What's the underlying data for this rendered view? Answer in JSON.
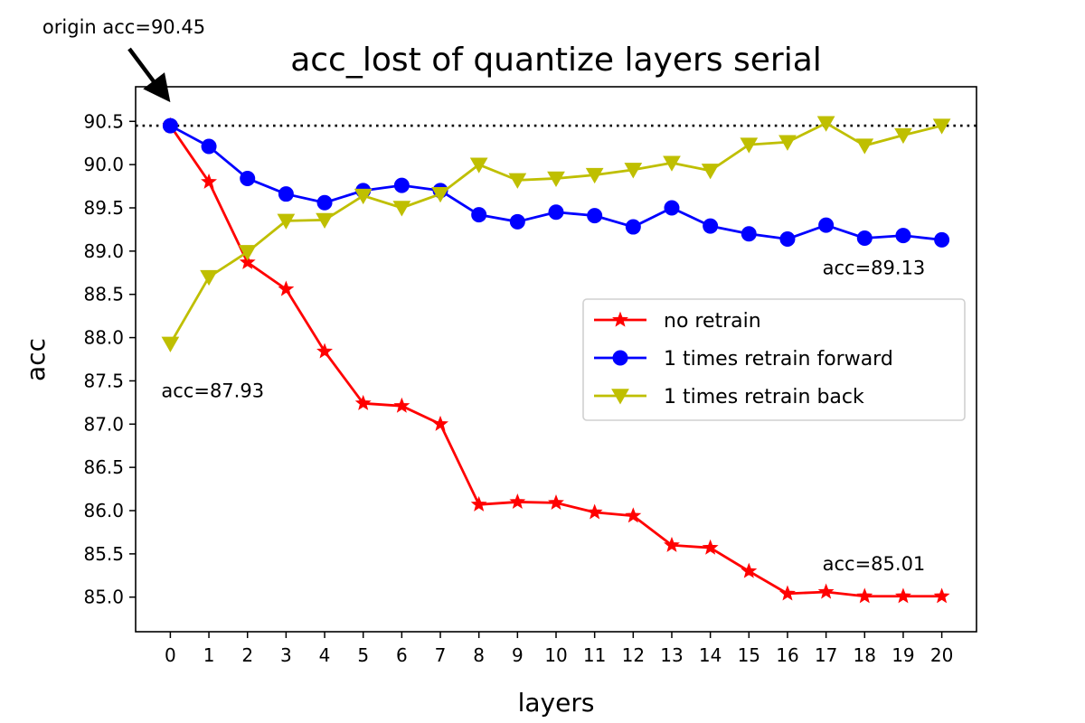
{
  "chart_data": {
    "type": "line",
    "title": "acc_lost of quantize layers serial",
    "xlabel": "layers",
    "ylabel": "acc",
    "x": [
      0,
      1,
      2,
      3,
      4,
      5,
      6,
      7,
      8,
      9,
      10,
      11,
      12,
      13,
      14,
      15,
      16,
      17,
      18,
      19,
      20
    ],
    "xlim": [
      -0.9,
      20.9
    ],
    "ylim": [
      84.6,
      90.9
    ],
    "yticks": [
      85.0,
      85.5,
      86.0,
      86.5,
      87.0,
      87.5,
      88.0,
      88.5,
      89.0,
      89.5,
      90.0,
      90.5
    ],
    "grid": false,
    "legend_position": "center-right",
    "reference_line": {
      "y": 90.45,
      "style": "dotted",
      "color": "#000000"
    },
    "series": [
      {
        "name": "no retrain",
        "color": "#ff0000",
        "marker": "star",
        "values": [
          90.45,
          89.8,
          88.87,
          88.56,
          87.84,
          87.24,
          87.21,
          87.0,
          86.07,
          86.1,
          86.09,
          85.98,
          85.94,
          85.6,
          85.57,
          85.3,
          85.04,
          85.06,
          85.01,
          85.01,
          85.01
        ]
      },
      {
        "name": "1 times retrain forward",
        "color": "#0000ff",
        "marker": "circle",
        "values": [
          90.45,
          90.21,
          89.84,
          89.66,
          89.56,
          89.7,
          89.76,
          89.7,
          89.42,
          89.34,
          89.45,
          89.41,
          89.28,
          89.5,
          89.29,
          89.2,
          89.14,
          89.3,
          89.15,
          89.18,
          89.13
        ]
      },
      {
        "name": "1 times retrain back",
        "color": "#bfbf00",
        "marker": "triangle-down",
        "values": [
          87.93,
          88.7,
          88.99,
          89.35,
          89.36,
          89.64,
          89.5,
          89.66,
          90.0,
          89.82,
          89.84,
          89.88,
          89.94,
          90.02,
          89.93,
          90.23,
          90.26,
          90.48,
          90.22,
          90.34,
          90.45
        ]
      }
    ],
    "annotations": [
      {
        "text": "origin acc=90.45",
        "x": 0,
        "y": 90.45,
        "arrow": true
      },
      {
        "text": "acc=89.13",
        "x": 20,
        "y": 89.13
      },
      {
        "text": "acc=87.93",
        "x": 0,
        "y": 87.93
      },
      {
        "text": "acc=85.01",
        "x": 20,
        "y": 85.01
      }
    ]
  }
}
